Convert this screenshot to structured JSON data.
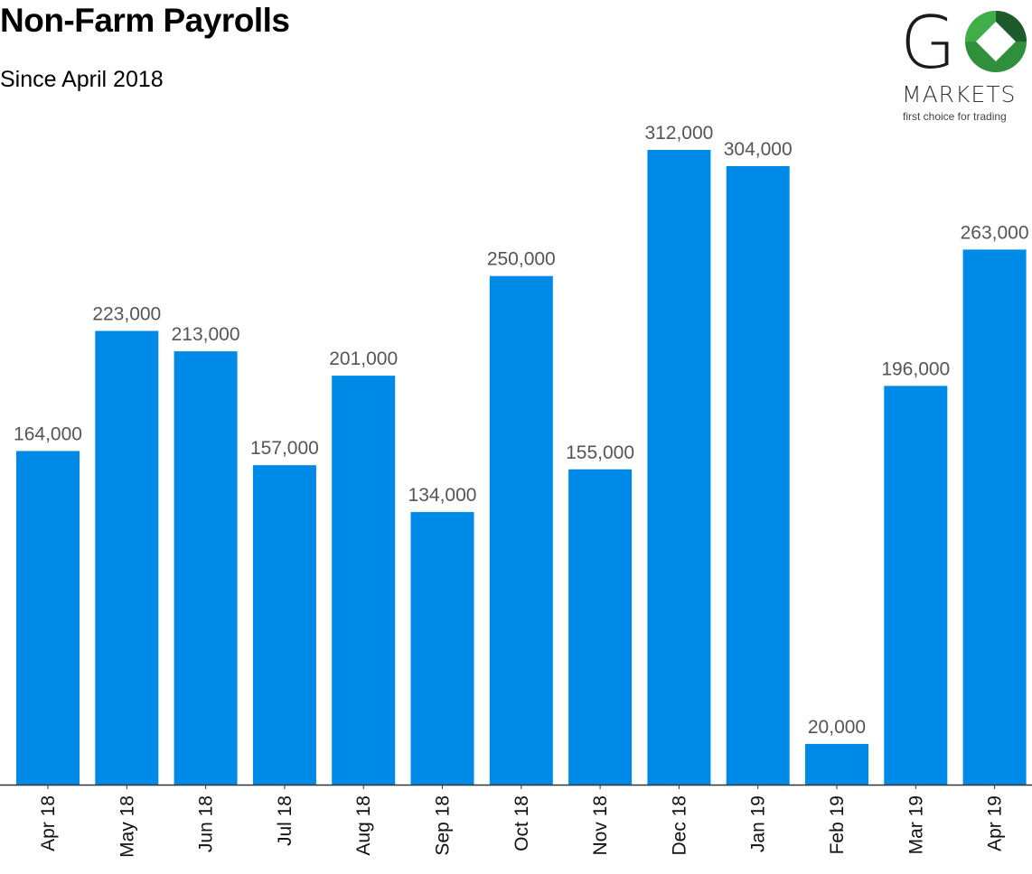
{
  "logo": {
    "letter": "G",
    "wordmark": "MARKETS",
    "tagline": "first choice for trading",
    "colors": {
      "dark": "#1d5b2c",
      "light": "#3fae49"
    }
  },
  "chart_data": {
    "type": "bar",
    "title": "Non-Farm Payrolls",
    "subtitle": "Since April 2018",
    "categories": [
      "Apr 18",
      "May 18",
      "Jun 18",
      "Jul 18",
      "Aug 18",
      "Sep 18",
      "Oct 18",
      "Nov 18",
      "Dec 18",
      "Jan 19",
      "Feb 19",
      "Mar 19",
      "Apr 19"
    ],
    "values": [
      164000,
      223000,
      213000,
      157000,
      201000,
      134000,
      250000,
      155000,
      312000,
      304000,
      20000,
      196000,
      263000
    ],
    "value_labels": [
      "164,000",
      "223,000",
      "213,000",
      "157,000",
      "201,000",
      "134,000",
      "250,000",
      "155,000",
      "312,000",
      "304,000",
      "20,000",
      "196,000",
      "263,000"
    ],
    "ylim": [
      0,
      312000
    ],
    "grid": false,
    "legend": "none",
    "bar_color": "#008ae8",
    "axis_color": "#333333"
  }
}
